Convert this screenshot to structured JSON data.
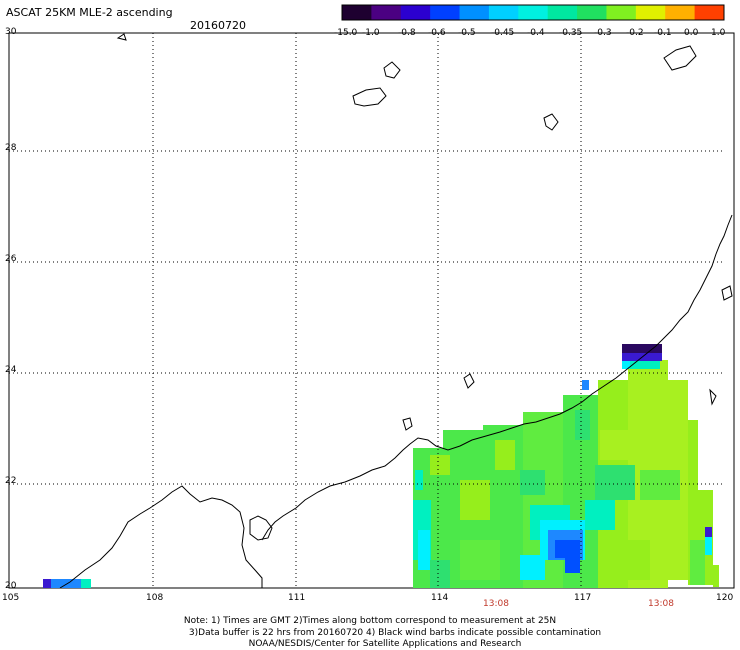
{
  "header": {
    "title": "ASCAT 25KM MLE-2 ascending",
    "date": "20160720"
  },
  "colorbar": {
    "labels": [
      "-15.0",
      "-1.0",
      "-0.8",
      "-0.6",
      "-0.5",
      "-0.45",
      "-0.4",
      "-0.35",
      "-0.3",
      "-0.2",
      "-0.1",
      "0.0",
      "1.0"
    ],
    "colors": [
      "#1e0030",
      "#4b0082",
      "#2b00d0",
      "#0040ff",
      "#0090ff",
      "#00d0ff",
      "#00f0e0",
      "#00e8a0",
      "#20e060",
      "#80f020",
      "#e0f000",
      "#ffb000",
      "#ff4000"
    ]
  },
  "axes": {
    "lon_ticks": [
      "105",
      "108",
      "111",
      "114",
      "117",
      "120"
    ],
    "lat_ticks": [
      "30",
      "28",
      "26",
      "24",
      "22",
      "20"
    ]
  },
  "pass_times": [
    "13:08",
    "13:08"
  ],
  "notes": [
    "Note: 1) Times are GMT 2)Times along bottom correspond to measurement at 25N",
    "3)Data buffer is 22 hrs from 20160720 4) Black wind barbs indicate possible contamination",
    "NOAA/NESDIS/Center for Satellite Applications and Research"
  ],
  "colors": {
    "time_label": "#c0392b",
    "coastline": "#000000",
    "grid": "#000000"
  }
}
